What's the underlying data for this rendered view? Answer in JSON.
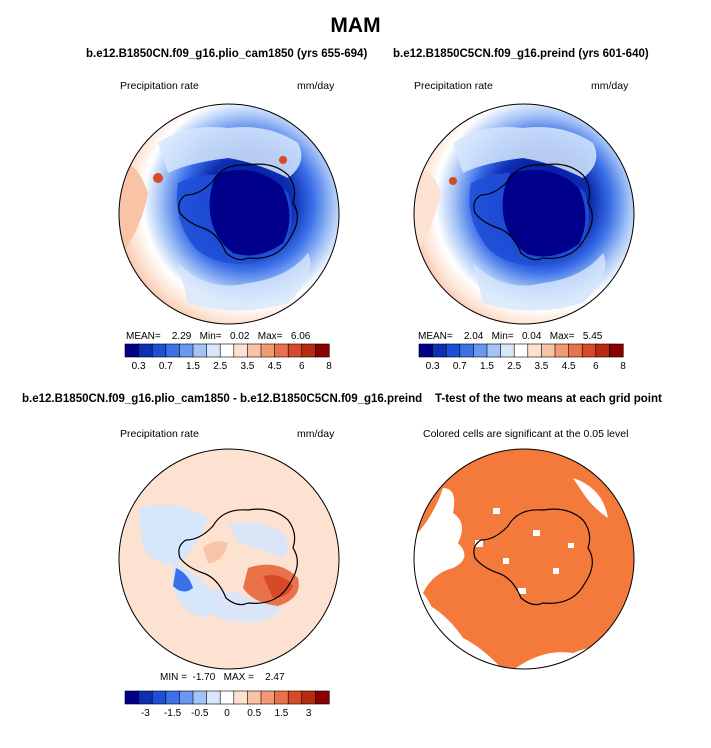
{
  "header": {
    "title": "MAM"
  },
  "panels": [
    {
      "id": "plio",
      "title": "b.e12.B1850CN.f09_g16.plio_cam1850 (yrs 655-694)",
      "left_label": "Precipitation rate",
      "right_label": "mm/day",
      "stats": {
        "mean_label": "MEAN=",
        "mean": "2.29",
        "min_label": "Min=",
        "min": "0.02",
        "max_label": "Max=",
        "max": "6.06"
      }
    },
    {
      "id": "preind",
      "title": "b.e12.B1850C5CN.f09_g16.preind (yrs 601-640)",
      "left_label": "Precipitation rate",
      "right_label": "mm/day",
      "stats": {
        "mean_label": "MEAN=",
        "mean": "2.04",
        "min_label": "Min=",
        "min": "0.04",
        "max_label": "Max=",
        "max": "5.45"
      }
    },
    {
      "id": "diff",
      "title": "b.e12.B1850CN.f09_g16.plio_cam1850 - b.e12.B1850C5CN.f09_g16.preind",
      "left_label": "Precipitation rate",
      "right_label": "mm/day",
      "stats": {
        "min_label": "MIN =",
        "min": "-1.70",
        "max_label": "MAX =",
        "max": "2.47"
      }
    },
    {
      "id": "ttest",
      "title": "T-test of the two means at each grid point",
      "subtitle": "Colored cells are significant at the 0.05 level"
    }
  ],
  "colors": {
    "abs_scale": [
      "#00008b",
      "#0d2fb4",
      "#1f4fd8",
      "#3b70e8",
      "#6a98f0",
      "#a4c3f6",
      "#d6e6fb",
      "#ffffff",
      "#fde2d2",
      "#f9c3a6",
      "#f39a72",
      "#e9724a",
      "#d84a27",
      "#b92b10",
      "#8b0000"
    ],
    "diff_scale": [
      "#00008b",
      "#0d2fb4",
      "#1f4fd8",
      "#3b70e8",
      "#6a98f0",
      "#a4c3f6",
      "#d6e6fb",
      "#ffffff",
      "#fde2d2",
      "#f9c3a6",
      "#f39a72",
      "#e9724a",
      "#d84a27",
      "#b92b10",
      "#8b0000"
    ],
    "signif": "#f47a3c"
  },
  "colorbars": {
    "abs_ticks": [
      "0.3",
      "0.7",
      "1.5",
      "2.5",
      "3.5",
      "4.5",
      "6",
      "8"
    ],
    "diff_ticks": [
      "-3",
      "-1.5",
      "-0.5",
      "0",
      "0.5",
      "1.5",
      "3"
    ]
  },
  "chart_data": [
    {
      "type": "heatmap",
      "title": "b.e12.B1850CN.f09_g16.plio_cam1850 (yrs 655-694)",
      "variable": "Precipitation rate",
      "units": "mm/day",
      "projection": "south polar stereographic",
      "summary": {
        "mean": 2.29,
        "min": 0.02,
        "max": 6.06
      },
      "contour_levels": [
        0.3,
        0.5,
        0.7,
        1,
        1.5,
        2,
        2.5,
        3,
        3.5,
        4,
        4.5,
        5,
        6,
        7,
        8
      ]
    },
    {
      "type": "heatmap",
      "title": "b.e12.B1850C5CN.f09_g16.preind (yrs 601-640)",
      "variable": "Precipitation rate",
      "units": "mm/day",
      "projection": "south polar stereographic",
      "summary": {
        "mean": 2.04,
        "min": 0.04,
        "max": 5.45
      },
      "contour_levels": [
        0.3,
        0.5,
        0.7,
        1,
        1.5,
        2,
        2.5,
        3,
        3.5,
        4,
        4.5,
        5,
        6,
        7,
        8
      ]
    },
    {
      "type": "heatmap",
      "title": "b.e12.B1850CN.f09_g16.plio_cam1850 - b.e12.B1850C5CN.f09_g16.preind",
      "variable": "Precipitation rate difference",
      "units": "mm/day",
      "projection": "south polar stereographic",
      "summary": {
        "min": -1.7,
        "max": 2.47
      },
      "contour_levels": [
        -3,
        -2,
        -1.5,
        -1,
        -0.5,
        -0.25,
        0,
        0.25,
        0.5,
        1,
        1.5,
        2,
        3
      ]
    },
    {
      "type": "heatmap",
      "title": "T-test of the two means at each grid point",
      "note": "Colored cells are significant at the 0.05 level",
      "significance_level": 0.05
    }
  ]
}
